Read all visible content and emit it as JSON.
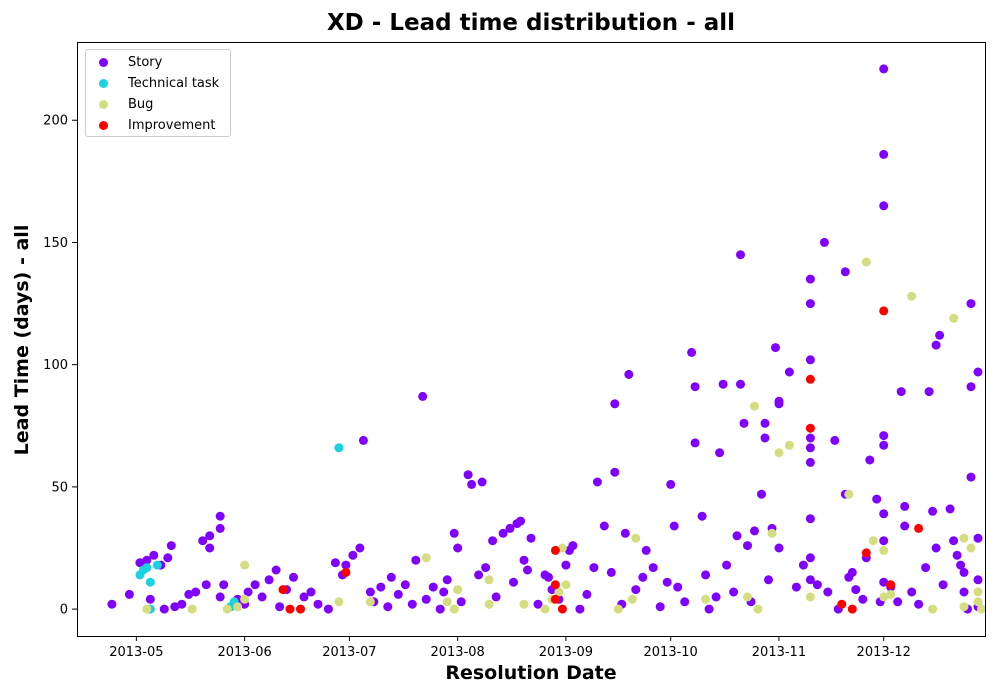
{
  "chart_data": {
    "type": "scatter",
    "title": "XD - Lead time distribution - all",
    "xlabel": "Resolution Date",
    "ylabel": "Lead Time (days) - all",
    "xlim": [
      "2013-04-14",
      "2013-12-30"
    ],
    "ylim": [
      -11,
      232
    ],
    "x_ticks": [
      "2013-05-01",
      "2013-06-01",
      "2013-07-01",
      "2013-08-01",
      "2013-09-01",
      "2013-10-01",
      "2013-11-01",
      "2013-12-01"
    ],
    "x_tick_labels": [
      "2013-05",
      "2013-06",
      "2013-07",
      "2013-08",
      "2013-09",
      "2013-10",
      "2013-11",
      "2013-12"
    ],
    "y_ticks": [
      0,
      50,
      100,
      150,
      200
    ],
    "grid": false,
    "legend": "top-left",
    "series": [
      {
        "name": "Story",
        "color": "#8000ff",
        "points": [
          [
            "2013-04-24",
            2
          ],
          [
            "2013-04-29",
            6
          ],
          [
            "2013-05-02",
            19
          ],
          [
            "2013-05-04",
            20
          ],
          [
            "2013-05-05",
            4
          ],
          [
            "2013-05-06",
            22
          ],
          [
            "2013-05-08",
            18
          ],
          [
            "2013-05-09",
            0
          ],
          [
            "2013-05-10",
            21
          ],
          [
            "2013-05-11",
            26
          ],
          [
            "2013-05-12",
            1
          ],
          [
            "2013-05-14",
            2
          ],
          [
            "2013-05-16",
            6
          ],
          [
            "2013-05-18",
            7
          ],
          [
            "2013-05-20",
            28
          ],
          [
            "2013-05-21",
            10
          ],
          [
            "2013-05-22",
            30
          ],
          [
            "2013-05-22",
            25
          ],
          [
            "2013-05-25",
            38
          ],
          [
            "2013-05-25",
            33
          ],
          [
            "2013-05-25",
            5
          ],
          [
            "2013-05-26",
            10
          ],
          [
            "2013-05-28",
            1
          ],
          [
            "2013-05-30",
            4
          ],
          [
            "2013-06-01",
            2
          ],
          [
            "2013-06-02",
            7
          ],
          [
            "2013-06-04",
            10
          ],
          [
            "2013-06-06",
            5
          ],
          [
            "2013-06-08",
            12
          ],
          [
            "2013-06-10",
            16
          ],
          [
            "2013-06-11",
            1
          ],
          [
            "2013-06-13",
            8
          ],
          [
            "2013-06-15",
            13
          ],
          [
            "2013-06-18",
            5
          ],
          [
            "2013-06-20",
            7
          ],
          [
            "2013-06-22",
            2
          ],
          [
            "2013-06-25",
            0
          ],
          [
            "2013-06-27",
            19
          ],
          [
            "2013-06-29",
            14
          ],
          [
            "2013-06-30",
            18
          ],
          [
            "2013-07-02",
            22
          ],
          [
            "2013-07-04",
            25
          ],
          [
            "2013-07-05",
            69
          ],
          [
            "2013-07-07",
            7
          ],
          [
            "2013-07-08",
            3
          ],
          [
            "2013-07-10",
            9
          ],
          [
            "2013-07-12",
            1
          ],
          [
            "2013-07-13",
            13
          ],
          [
            "2013-07-15",
            6
          ],
          [
            "2013-07-17",
            10
          ],
          [
            "2013-07-19",
            2
          ],
          [
            "2013-07-20",
            20
          ],
          [
            "2013-07-22",
            87
          ],
          [
            "2013-07-23",
            4
          ],
          [
            "2013-07-25",
            9
          ],
          [
            "2013-07-27",
            0
          ],
          [
            "2013-07-28",
            7
          ],
          [
            "2013-07-29",
            12
          ],
          [
            "2013-07-31",
            31
          ],
          [
            "2013-08-01",
            25
          ],
          [
            "2013-08-02",
            3
          ],
          [
            "2013-08-04",
            55
          ],
          [
            "2013-08-05",
            51
          ],
          [
            "2013-08-07",
            14
          ],
          [
            "2013-08-08",
            52
          ],
          [
            "2013-08-09",
            17
          ],
          [
            "2013-08-11",
            28
          ],
          [
            "2013-08-12",
            5
          ],
          [
            "2013-08-14",
            31
          ],
          [
            "2013-08-16",
            33
          ],
          [
            "2013-08-17",
            11
          ],
          [
            "2013-08-18",
            35
          ],
          [
            "2013-08-19",
            36
          ],
          [
            "2013-08-20",
            20
          ],
          [
            "2013-08-21",
            16
          ],
          [
            "2013-08-22",
            29
          ],
          [
            "2013-08-24",
            2
          ],
          [
            "2013-08-26",
            14
          ],
          [
            "2013-08-27",
            13
          ],
          [
            "2013-08-28",
            8
          ],
          [
            "2013-08-30",
            4
          ],
          [
            "2013-09-01",
            18
          ],
          [
            "2013-09-02",
            24
          ],
          [
            "2013-09-03",
            26
          ],
          [
            "2013-09-05",
            0
          ],
          [
            "2013-09-07",
            6
          ],
          [
            "2013-09-09",
            17
          ],
          [
            "2013-09-10",
            52
          ],
          [
            "2013-09-12",
            34
          ],
          [
            "2013-09-14",
            15
          ],
          [
            "2013-09-15",
            84
          ],
          [
            "2013-09-15",
            56
          ],
          [
            "2013-09-17",
            2
          ],
          [
            "2013-09-18",
            31
          ],
          [
            "2013-09-19",
            96
          ],
          [
            "2013-09-21",
            8
          ],
          [
            "2013-09-23",
            13
          ],
          [
            "2013-09-24",
            24
          ],
          [
            "2013-09-26",
            17
          ],
          [
            "2013-09-28",
            1
          ],
          [
            "2013-09-30",
            11
          ],
          [
            "2013-10-01",
            51
          ],
          [
            "2013-10-02",
            34
          ],
          [
            "2013-10-03",
            9
          ],
          [
            "2013-10-05",
            3
          ],
          [
            "2013-10-07",
            105
          ],
          [
            "2013-10-08",
            91
          ],
          [
            "2013-10-08",
            68
          ],
          [
            "2013-10-10",
            38
          ],
          [
            "2013-10-11",
            14
          ],
          [
            "2013-10-12",
            0
          ],
          [
            "2013-10-14",
            5
          ],
          [
            "2013-10-15",
            64
          ],
          [
            "2013-10-16",
            92
          ],
          [
            "2013-10-17",
            18
          ],
          [
            "2013-10-19",
            7
          ],
          [
            "2013-10-20",
            30
          ],
          [
            "2013-10-21",
            92
          ],
          [
            "2013-10-21",
            145
          ],
          [
            "2013-10-22",
            76
          ],
          [
            "2013-10-23",
            26
          ],
          [
            "2013-10-24",
            3
          ],
          [
            "2013-10-25",
            32
          ],
          [
            "2013-10-27",
            47
          ],
          [
            "2013-10-28",
            76
          ],
          [
            "2013-10-28",
            70
          ],
          [
            "2013-10-29",
            12
          ],
          [
            "2013-10-30",
            33
          ],
          [
            "2013-10-31",
            107
          ],
          [
            "2013-11-01",
            85
          ],
          [
            "2013-11-01",
            84
          ],
          [
            "2013-11-01",
            25
          ],
          [
            "2013-11-04",
            97
          ],
          [
            "2013-11-06",
            9
          ],
          [
            "2013-11-08",
            18
          ],
          [
            "2013-11-10",
            135
          ],
          [
            "2013-11-10",
            125
          ],
          [
            "2013-11-10",
            102
          ],
          [
            "2013-11-10",
            70
          ],
          [
            "2013-11-10",
            66
          ],
          [
            "2013-11-10",
            60
          ],
          [
            "2013-11-10",
            37
          ],
          [
            "2013-11-10",
            21
          ],
          [
            "2013-11-10",
            12
          ],
          [
            "2013-11-12",
            10
          ],
          [
            "2013-11-14",
            150
          ],
          [
            "2013-11-15",
            7
          ],
          [
            "2013-11-17",
            69
          ],
          [
            "2013-11-18",
            0
          ],
          [
            "2013-11-20",
            138
          ],
          [
            "2013-11-20",
            47
          ],
          [
            "2013-11-21",
            13
          ],
          [
            "2013-11-22",
            15
          ],
          [
            "2013-11-23",
            8
          ],
          [
            "2013-11-25",
            4
          ],
          [
            "2013-11-26",
            21
          ],
          [
            "2013-11-27",
            61
          ],
          [
            "2013-11-29",
            45
          ],
          [
            "2013-11-30",
            3
          ],
          [
            "2013-12-01",
            221
          ],
          [
            "2013-12-01",
            186
          ],
          [
            "2013-12-01",
            165
          ],
          [
            "2013-12-01",
            71
          ],
          [
            "2013-12-01",
            67
          ],
          [
            "2013-12-01",
            39
          ],
          [
            "2013-12-01",
            28
          ],
          [
            "2013-12-01",
            11
          ],
          [
            "2013-12-03",
            9
          ],
          [
            "2013-12-05",
            3
          ],
          [
            "2013-12-06",
            89
          ],
          [
            "2013-12-07",
            34
          ],
          [
            "2013-12-07",
            42
          ],
          [
            "2013-12-09",
            7
          ],
          [
            "2013-12-11",
            2
          ],
          [
            "2013-12-13",
            17
          ],
          [
            "2013-12-14",
            89
          ],
          [
            "2013-12-15",
            40
          ],
          [
            "2013-12-16",
            25
          ],
          [
            "2013-12-16",
            108
          ],
          [
            "2013-12-17",
            112
          ],
          [
            "2013-12-18",
            10
          ],
          [
            "2013-12-20",
            41
          ],
          [
            "2013-12-21",
            28
          ],
          [
            "2013-12-22",
            22
          ],
          [
            "2013-12-23",
            18
          ],
          [
            "2013-12-24",
            15
          ],
          [
            "2013-12-24",
            7
          ],
          [
            "2013-12-25",
            0
          ],
          [
            "2013-12-26",
            125
          ],
          [
            "2013-12-26",
            91
          ],
          [
            "2013-12-26",
            54
          ],
          [
            "2013-12-28",
            97
          ],
          [
            "2013-12-28",
            29
          ],
          [
            "2013-12-28",
            12
          ],
          [
            "2013-12-28",
            1
          ]
        ]
      },
      {
        "name": "Technical task",
        "color": "#1ad3e0",
        "points": [
          [
            "2013-05-02",
            14
          ],
          [
            "2013-05-03",
            16
          ],
          [
            "2013-05-04",
            17
          ],
          [
            "2013-05-05",
            11
          ],
          [
            "2013-05-07",
            18
          ],
          [
            "2013-05-05",
            0
          ],
          [
            "2013-05-28",
            1
          ],
          [
            "2013-05-29",
            3
          ],
          [
            "2013-06-28",
            66
          ]
        ]
      },
      {
        "name": "Bug",
        "color": "#d4dd80",
        "points": [
          [
            "2013-05-04",
            0
          ],
          [
            "2013-05-17",
            0
          ],
          [
            "2013-05-27",
            0
          ],
          [
            "2013-05-30",
            1
          ],
          [
            "2013-06-01",
            18
          ],
          [
            "2013-06-01",
            4
          ],
          [
            "2013-06-17",
            0
          ],
          [
            "2013-06-28",
            3
          ],
          [
            "2013-07-07",
            3
          ],
          [
            "2013-07-23",
            21
          ],
          [
            "2013-07-29",
            3
          ],
          [
            "2013-07-31",
            0
          ],
          [
            "2013-08-01",
            8
          ],
          [
            "2013-08-10",
            2
          ],
          [
            "2013-08-10",
            12
          ],
          [
            "2013-08-20",
            2
          ],
          [
            "2013-08-26",
            0
          ],
          [
            "2013-08-28",
            4
          ],
          [
            "2013-08-30",
            7
          ],
          [
            "2013-08-31",
            25
          ],
          [
            "2013-09-01",
            10
          ],
          [
            "2013-09-16",
            0
          ],
          [
            "2013-09-20",
            4
          ],
          [
            "2013-09-21",
            29
          ],
          [
            "2013-10-11",
            4
          ],
          [
            "2013-10-23",
            5
          ],
          [
            "2013-10-25",
            83
          ],
          [
            "2013-10-26",
            0
          ],
          [
            "2013-10-30",
            31
          ],
          [
            "2013-11-01",
            64
          ],
          [
            "2013-11-04",
            67
          ],
          [
            "2013-11-10",
            5
          ],
          [
            "2013-11-21",
            47
          ],
          [
            "2013-11-26",
            142
          ],
          [
            "2013-11-28",
            28
          ],
          [
            "2013-12-01",
            24
          ],
          [
            "2013-12-01",
            5
          ],
          [
            "2013-12-03",
            6
          ],
          [
            "2013-12-09",
            128
          ],
          [
            "2013-12-15",
            0
          ],
          [
            "2013-12-21",
            119
          ],
          [
            "2013-12-24",
            29
          ],
          [
            "2013-12-24",
            1
          ],
          [
            "2013-12-26",
            25
          ],
          [
            "2013-12-28",
            7
          ],
          [
            "2013-12-28",
            3
          ],
          [
            "2013-12-29",
            0
          ]
        ]
      },
      {
        "name": "Improvement",
        "color": "#ff0000",
        "points": [
          [
            "2013-06-12",
            8
          ],
          [
            "2013-06-14",
            0
          ],
          [
            "2013-06-17",
            0
          ],
          [
            "2013-06-30",
            15
          ],
          [
            "2013-08-29",
            24
          ],
          [
            "2013-08-29",
            10
          ],
          [
            "2013-08-29",
            4
          ],
          [
            "2013-08-31",
            0
          ],
          [
            "2013-11-10",
            94
          ],
          [
            "2013-11-10",
            74
          ],
          [
            "2013-11-19",
            2
          ],
          [
            "2013-11-22",
            0
          ],
          [
            "2013-11-26",
            23
          ],
          [
            "2013-12-01",
            122
          ],
          [
            "2013-12-03",
            10
          ],
          [
            "2013-12-11",
            33
          ]
        ]
      }
    ]
  }
}
